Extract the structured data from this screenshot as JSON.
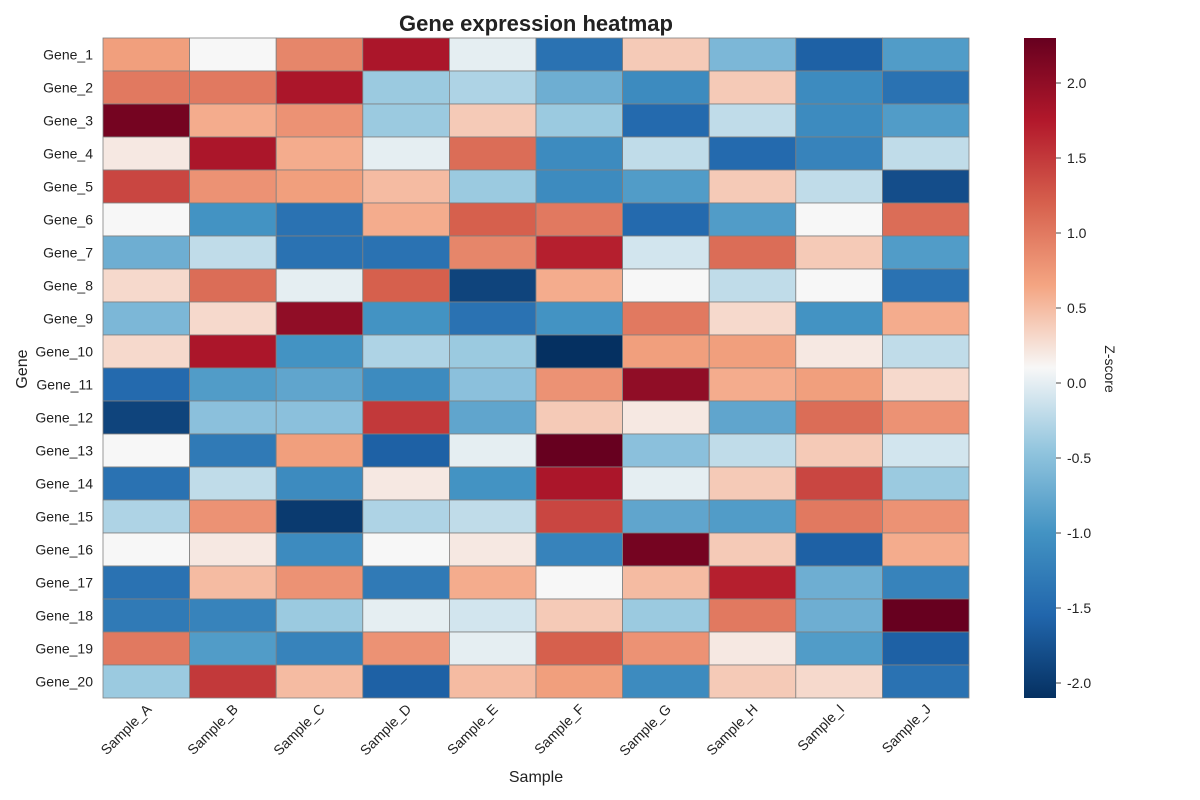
{
  "chart_data": {
    "type": "heatmap",
    "title": "Gene expression heatmap",
    "xlabel": "Sample",
    "ylabel": "Gene",
    "colorbar_label": "Z-score",
    "colormap": "RdBu_r",
    "vmin": -2.1,
    "vmax": 2.3,
    "colorbar_ticks": [
      2.0,
      1.5,
      1.0,
      0.5,
      0.0,
      -0.5,
      -1.0,
      -1.5,
      -2.0
    ],
    "colorbar_tick_labels": [
      "2.0",
      "1.5",
      "1.0",
      "0.5",
      "0.0",
      "-0.5",
      "-1.0",
      "-1.5",
      "-2.0"
    ],
    "grid": true,
    "x_categories": [
      "Sample_A",
      "Sample_B",
      "Sample_C",
      "Sample_D",
      "Sample_E",
      "Sample_F",
      "Sample_G",
      "Sample_H",
      "Sample_I",
      "Sample_J"
    ],
    "y_categories": [
      "Gene_1",
      "Gene_2",
      "Gene_3",
      "Gene_4",
      "Gene_5",
      "Gene_6",
      "Gene_7",
      "Gene_8",
      "Gene_9",
      "Gene_10",
      "Gene_11",
      "Gene_12",
      "Gene_13",
      "Gene_14",
      "Gene_15",
      "Gene_16",
      "Gene_17",
      "Gene_18",
      "Gene_19",
      "Gene_20"
    ],
    "values": [
      [
        0.7,
        0.1,
        0.9,
        1.8,
        0.0,
        -1.4,
        0.4,
        -0.6,
        -1.6,
        -0.9
      ],
      [
        1.0,
        1.0,
        1.8,
        -0.4,
        -0.3,
        -0.7,
        -1.1,
        0.4,
        -1.1,
        -1.4
      ],
      [
        2.2,
        0.6,
        0.8,
        -0.4,
        0.4,
        -0.4,
        -1.5,
        -0.2,
        -1.1,
        -0.9
      ],
      [
        0.2,
        1.8,
        0.6,
        0.0,
        1.1,
        -1.1,
        -0.2,
        -1.5,
        -1.2,
        -0.2
      ],
      [
        1.4,
        0.8,
        0.7,
        0.5,
        -0.4,
        -1.1,
        -0.9,
        0.4,
        -0.2,
        -1.8
      ],
      [
        0.1,
        -1.0,
        -1.4,
        0.6,
        1.2,
        1.0,
        -1.5,
        -0.9,
        0.1,
        1.1
      ],
      [
        -0.7,
        -0.2,
        -1.4,
        -1.4,
        0.9,
        1.7,
        -0.1,
        1.1,
        0.4,
        -0.9
      ],
      [
        0.3,
        1.1,
        0.0,
        1.2,
        -1.9,
        0.6,
        0.1,
        -0.2,
        0.1,
        -1.4
      ],
      [
        -0.6,
        0.3,
        2.0,
        -1.0,
        -1.4,
        -1.0,
        1.0,
        0.3,
        -1.0,
        0.6
      ],
      [
        0.3,
        1.8,
        -1.0,
        -0.3,
        -0.4,
        -2.1,
        0.7,
        0.7,
        0.2,
        -0.2
      ],
      [
        -1.5,
        -0.9,
        -0.8,
        -1.1,
        -0.5,
        0.8,
        2.0,
        0.6,
        0.7,
        0.3
      ],
      [
        -1.9,
        -0.5,
        -0.5,
        1.5,
        -0.8,
        0.4,
        0.2,
        -0.8,
        1.1,
        0.8
      ],
      [
        0.1,
        -1.3,
        0.7,
        -1.6,
        0.0,
        2.3,
        -0.5,
        -0.2,
        0.4,
        -0.1
      ],
      [
        -1.4,
        -0.2,
        -1.1,
        0.2,
        -1.0,
        1.8,
        0.0,
        0.4,
        1.4,
        -0.4
      ],
      [
        -0.3,
        0.8,
        -2.0,
        -0.3,
        -0.2,
        1.4,
        -0.8,
        -0.9,
        1.0,
        0.8
      ],
      [
        0.1,
        0.2,
        -1.1,
        0.1,
        0.2,
        -1.2,
        2.2,
        0.4,
        -1.6,
        0.6
      ],
      [
        -1.4,
        0.5,
        0.8,
        -1.3,
        0.6,
        0.1,
        0.5,
        1.7,
        -0.7,
        -1.2
      ],
      [
        -1.3,
        -1.2,
        -0.4,
        0.0,
        -0.1,
        0.4,
        -0.4,
        1.0,
        -0.7,
        2.3
      ],
      [
        1.0,
        -0.9,
        -1.2,
        0.8,
        0.0,
        1.2,
        0.8,
        0.2,
        -0.9,
        -1.6
      ],
      [
        -0.4,
        1.5,
        0.5,
        -1.6,
        0.5,
        0.7,
        -1.1,
        0.4,
        0.3,
        -1.4
      ]
    ]
  }
}
